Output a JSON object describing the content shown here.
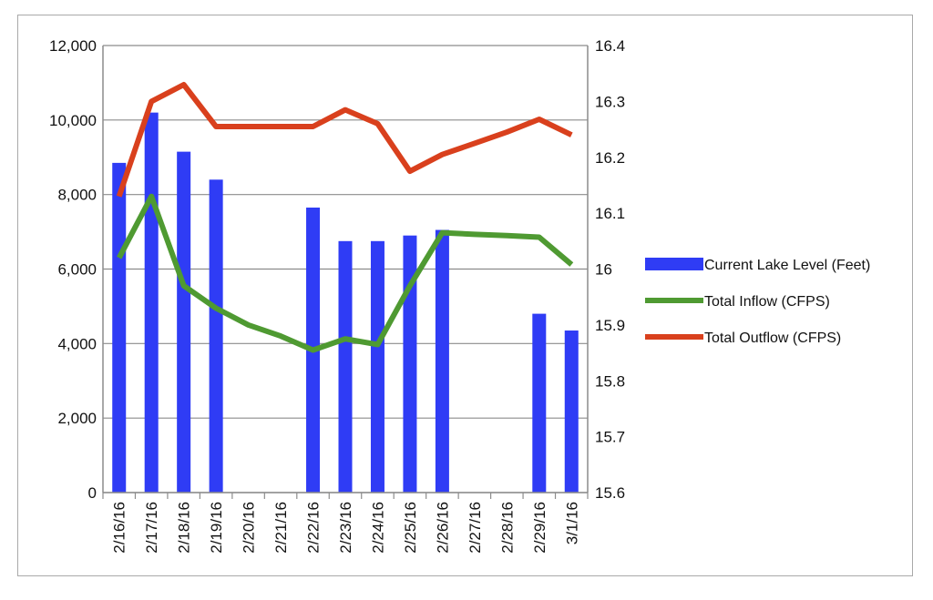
{
  "chart_data": {
    "type": "bar",
    "title": "",
    "categories": [
      "2/16/16",
      "2/17/16",
      "2/18/16",
      "2/19/16",
      "2/20/16",
      "2/21/16",
      "2/22/16",
      "2/23/16",
      "2/24/16",
      "2/25/16",
      "2/26/16",
      "2/27/16",
      "2/28/16",
      "2/29/16",
      "3/1/16"
    ],
    "left_axis": {
      "label": "",
      "ylim": [
        0,
        12000
      ],
      "ticks": [
        0,
        2000,
        4000,
        6000,
        8000,
        10000,
        12000
      ],
      "tick_labels": [
        "0",
        "2,000",
        "4,000",
        "6,000",
        "8,000",
        "10,000",
        "12,000"
      ]
    },
    "right_axis": {
      "label": "",
      "ylim": [
        15.6,
        16.4
      ],
      "ticks": [
        15.6,
        15.7,
        15.8,
        15.9,
        16,
        16.1,
        16.2,
        16.3,
        16.4
      ],
      "tick_labels": [
        "15.6",
        "15.7",
        "15.8",
        "15.9",
        "16",
        "16.1",
        "16.2",
        "16.3",
        "16.4"
      ]
    },
    "series": [
      {
        "name": "Current Lake Level (Feet)",
        "type": "bar",
        "axis": "left",
        "color": "#2f3cf5",
        "values": [
          8850,
          10200,
          9150,
          8400,
          null,
          null,
          7650,
          6750,
          6750,
          6900,
          7050,
          null,
          null,
          4800,
          4350
        ]
      },
      {
        "name": "Total Inflow (CFPS)",
        "type": "line",
        "axis": "right",
        "color": "#4f9a32",
        "values": [
          16.02,
          16.13,
          15.97,
          15.93,
          15.9,
          15.88,
          15.855,
          15.875,
          15.865,
          15.97,
          16.065,
          16.062,
          16.06,
          16.057,
          16.008
        ]
      },
      {
        "name": "Total Outflow (CFPS)",
        "type": "line",
        "axis": "right",
        "color": "#d9401d",
        "values": [
          16.13,
          16.3,
          16.33,
          16.255,
          16.255,
          16.255,
          16.255,
          16.285,
          16.26,
          16.175,
          16.205,
          16.225,
          16.245,
          16.268,
          16.24
        ]
      }
    ],
    "grid": true,
    "legend_position": "right"
  }
}
